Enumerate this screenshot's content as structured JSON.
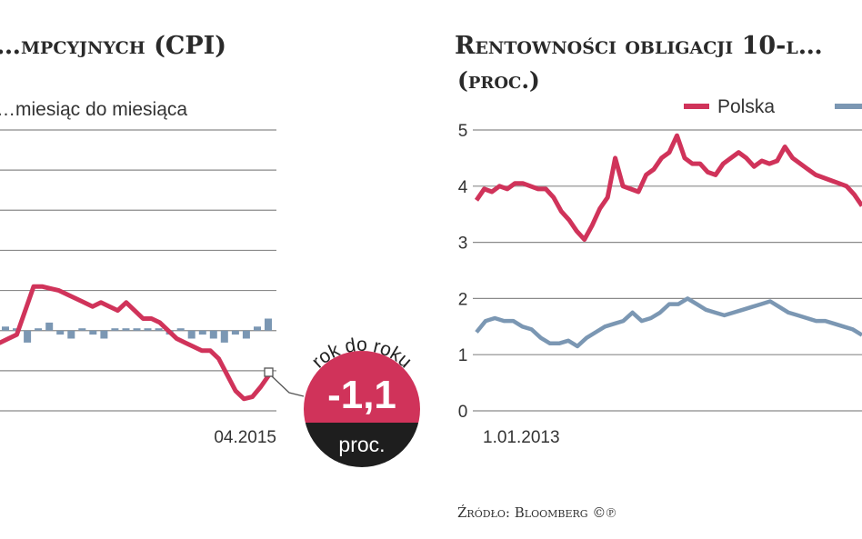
{
  "colors": {
    "accent": "#d0335a",
    "secondary": "#7b97b3",
    "badge_dark": "#1e1e1e",
    "grid": "#8a8a8a"
  },
  "source": "Źródło: Bloomberg ©℗",
  "chart_data": [
    {
      "type": "line",
      "title": "…mpcyjnych (CPI)",
      "subtitle": "…miesiąc do miesiąca",
      "x_tick_labels": [
        "04.2015"
      ],
      "grid": true,
      "badge": {
        "curved_label": "rok do roku",
        "value": "-1,1",
        "unit": "proc."
      },
      "series": [
        {
          "kind": "line",
          "values": [
            -0.3,
            -0.2,
            -0.1,
            0.5,
            1.1,
            1.1,
            1.05,
            1.0,
            0.9,
            0.8,
            0.7,
            0.6,
            0.7,
            0.6,
            0.5,
            0.7,
            0.5,
            0.3,
            0.3,
            0.2,
            0.0,
            -0.2,
            -0.3,
            -0.4,
            -0.5,
            -0.5,
            -0.7,
            -1.1,
            -1.5,
            -1.7,
            -1.65,
            -1.4,
            -1.1
          ]
        },
        {
          "kind": "bar",
          "values": [
            0.1,
            0.0,
            -0.3,
            0.0,
            0.2,
            -0.1,
            -0.2,
            0.0,
            -0.1,
            -0.2,
            0.0,
            0.0,
            0.0,
            0.0,
            0.0,
            -0.1,
            0.0,
            -0.2,
            -0.1,
            -0.2,
            -0.3,
            -0.1,
            -0.2,
            0.1,
            0.3
          ]
        }
      ]
    },
    {
      "type": "line",
      "title": "Rentowności obligacji 10-l…",
      "subtitle": "(proc.)",
      "y_ticks": [
        "0",
        "1",
        "2",
        "3",
        "4",
        "5"
      ],
      "x_tick_labels": [
        "1.01.2013"
      ],
      "ylim": [
        0,
        5
      ],
      "grid": true,
      "legend": {
        "position": "top-right",
        "entries": [
          "Polska",
          ""
        ]
      },
      "series": [
        {
          "name": "Polska",
          "values": [
            3.75,
            3.95,
            3.9,
            4.0,
            3.95,
            4.05,
            4.05,
            4.0,
            3.95,
            3.95,
            3.8,
            3.55,
            3.4,
            3.2,
            3.05,
            3.3,
            3.6,
            3.8,
            4.5,
            4.0,
            3.95,
            3.9,
            4.2,
            4.3,
            4.5,
            4.6,
            4.9,
            4.5,
            4.4,
            4.4,
            4.25,
            4.2,
            4.4,
            4.5,
            4.6,
            4.5,
            4.35,
            4.45,
            4.4,
            4.45,
            4.7,
            4.5,
            4.4,
            4.3,
            4.2,
            4.15,
            4.1,
            4.05,
            4.0,
            3.85,
            3.65
          ]
        },
        {
          "name": "",
          "values": [
            1.4,
            1.6,
            1.65,
            1.6,
            1.6,
            1.5,
            1.45,
            1.3,
            1.2,
            1.2,
            1.25,
            1.15,
            1.3,
            1.4,
            1.5,
            1.55,
            1.6,
            1.75,
            1.6,
            1.65,
            1.75,
            1.9,
            1.9,
            2.0,
            1.9,
            1.8,
            1.75,
            1.7,
            1.75,
            1.8,
            1.85,
            1.9,
            1.95,
            1.85,
            1.75,
            1.7,
            1.65,
            1.6,
            1.6,
            1.55,
            1.5,
            1.45,
            1.35
          ]
        }
      ]
    }
  ]
}
